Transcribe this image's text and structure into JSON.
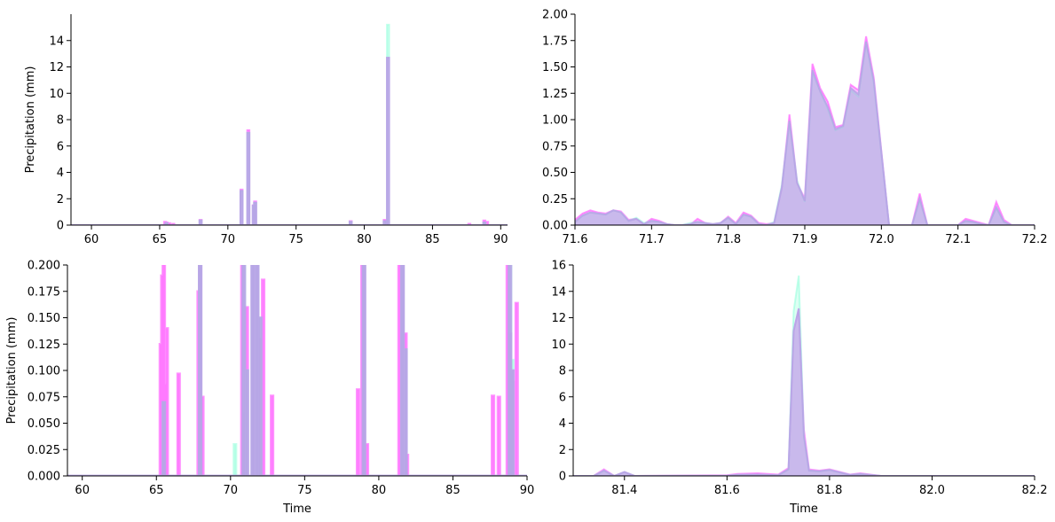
{
  "chart_data": [
    {
      "type": "area",
      "xlabel": "",
      "ylabel": "Precipitation (mm)",
      "xlim": [
        58.5,
        90.5
      ],
      "ylim": [
        0,
        16
      ],
      "xticks": [
        60,
        65,
        70,
        75,
        80,
        85,
        90
      ],
      "xtick_labels": [
        "60",
        "65",
        "70",
        "75",
        "80",
        "85",
        "90"
      ],
      "yticks": [
        0,
        2,
        4,
        6,
        8,
        10,
        12,
        14
      ],
      "ytick_labels": [
        "0",
        "2",
        "4",
        "6",
        "8",
        "10",
        "12",
        "14"
      ],
      "grid": false,
      "series": [
        {
          "color": "#ff40ff",
          "x": [
            59,
            65.4,
            65.5,
            65.7,
            66.0,
            68.0,
            71.0,
            71.5,
            71.9,
            72.0,
            79.0,
            81.5,
            81.74,
            87.7,
            88.8,
            89.0,
            90
          ],
          "values": [
            0,
            0.25,
            0.2,
            0.15,
            0.1,
            0.4,
            2.7,
            7.2,
            1.5,
            1.8,
            0.3,
            0.4,
            12.7,
            0.1,
            0.35,
            0.25,
            0
          ]
        },
        {
          "color": "#7fffd4",
          "x": [
            59,
            65.5,
            68.0,
            71.0,
            71.5,
            71.9,
            72.0,
            79.0,
            81.5,
            81.74,
            88.8,
            90
          ],
          "values": [
            0,
            0.15,
            0.35,
            2.6,
            7.0,
            1.4,
            1.7,
            0.25,
            0.3,
            15.2,
            0.2,
            0
          ]
        },
        {
          "color": "#b7a3e6",
          "x": [
            59,
            65.5,
            68.0,
            71.0,
            71.5,
            71.9,
            72.0,
            79.0,
            81.5,
            81.74,
            88.8,
            90
          ],
          "values": [
            0,
            0.15,
            0.35,
            2.6,
            7.0,
            1.5,
            1.7,
            0.25,
            0.3,
            12.7,
            0.2,
            0
          ]
        }
      ]
    },
    {
      "type": "area",
      "xlabel": "",
      "ylabel": "",
      "xlim": [
        71.6,
        72.2
      ],
      "ylim": [
        0,
        2.0
      ],
      "xticks": [
        71.6,
        71.7,
        71.8,
        71.9,
        72.0,
        72.1,
        72.2
      ],
      "xtick_labels": [
        "71.6",
        "71.7",
        "71.8",
        "71.9",
        "72.0",
        "72.1",
        "72.2"
      ],
      "yticks": [
        0,
        0.25,
        0.5,
        0.75,
        1.0,
        1.25,
        1.5,
        1.75,
        2.0
      ],
      "ytick_labels": [
        "0.00",
        "0.25",
        "0.50",
        "0.75",
        "1.00",
        "1.25",
        "1.50",
        "1.75",
        "2.00"
      ],
      "grid": false,
      "series": [
        {
          "color": "#ff40ff",
          "x": [
            71.6,
            71.61,
            71.62,
            71.63,
            71.64,
            71.65,
            71.66,
            71.67,
            71.68,
            71.69,
            71.7,
            71.71,
            71.72,
            71.73,
            71.74,
            71.75,
            71.76,
            71.77,
            71.78,
            71.79,
            71.8,
            71.81,
            71.82,
            71.83,
            71.84,
            71.85,
            71.86,
            71.87,
            71.88,
            71.89,
            71.9,
            71.91,
            71.92,
            71.93,
            71.94,
            71.95,
            71.96,
            71.97,
            71.98,
            71.99,
            72.0,
            72.01,
            72.02,
            72.03,
            72.04,
            72.05,
            72.06,
            72.07,
            72.08,
            72.09,
            72.1,
            72.11,
            72.12,
            72.13,
            72.14,
            72.15,
            72.16,
            72.17,
            72.18,
            72.19,
            72.2
          ],
          "values": [
            0.05,
            0.11,
            0.14,
            0.12,
            0.11,
            0.14,
            0.13,
            0.05,
            0.06,
            0.01,
            0.06,
            0.04,
            0.01,
            0.0,
            0.0,
            0.0,
            0.06,
            0.02,
            0.01,
            0.02,
            0.08,
            0.02,
            0.12,
            0.09,
            0.02,
            0.01,
            0.02,
            0.35,
            1.05,
            0.4,
            0.25,
            1.53,
            1.3,
            1.17,
            0.93,
            0.95,
            1.33,
            1.28,
            1.79,
            1.4,
            0.7,
            0.0,
            0.0,
            0.0,
            0.0,
            0.3,
            0.0,
            0.0,
            0.0,
            0.0,
            0.0,
            0.06,
            0.04,
            0.02,
            0.0,
            0.22,
            0.05,
            0.0,
            0.0,
            0.0,
            0.0
          ]
        },
        {
          "color": "#7fffd4",
          "x": [
            71.6,
            71.61,
            71.62,
            71.63,
            71.64,
            71.65,
            71.66,
            71.67,
            71.68,
            71.69,
            71.7,
            71.71,
            71.72,
            71.73,
            71.74,
            71.75,
            71.76,
            71.77,
            71.78,
            71.79,
            71.8,
            71.81,
            71.82,
            71.83,
            71.84,
            71.85,
            71.86,
            71.87,
            71.88,
            71.89,
            71.9,
            71.91,
            71.92,
            71.93,
            71.94,
            71.95,
            71.96,
            71.97,
            71.98,
            71.99,
            72.0,
            72.01,
            72.02,
            72.03,
            72.04,
            72.05,
            72.06,
            72.07,
            72.08,
            72.09,
            72.1,
            72.11,
            72.12,
            72.13,
            72.14,
            72.15,
            72.16,
            72.17,
            72.18,
            72.19,
            72.2
          ],
          "values": [
            0.03,
            0.09,
            0.12,
            0.11,
            0.1,
            0.14,
            0.12,
            0.04,
            0.07,
            0.02,
            0.04,
            0.03,
            0.01,
            0.0,
            0.0,
            0.02,
            0.03,
            0.02,
            0.01,
            0.02,
            0.07,
            0.01,
            0.1,
            0.08,
            0.01,
            0.0,
            0.03,
            0.38,
            0.98,
            0.42,
            0.22,
            1.45,
            1.27,
            1.1,
            0.9,
            0.93,
            1.28,
            1.22,
            1.73,
            1.35,
            0.68,
            0.0,
            0.0,
            0.0,
            0.0,
            0.24,
            0.0,
            0.0,
            0.0,
            0.0,
            0.0,
            0.04,
            0.03,
            0.01,
            0.0,
            0.16,
            0.03,
            0.0,
            0.0,
            0.0,
            0.0
          ]
        },
        {
          "color": "#b7a3e6",
          "x": [
            71.6,
            71.61,
            71.62,
            71.63,
            71.64,
            71.65,
            71.66,
            71.67,
            71.68,
            71.69,
            71.7,
            71.71,
            71.72,
            71.73,
            71.74,
            71.75,
            71.76,
            71.77,
            71.78,
            71.79,
            71.8,
            71.81,
            71.82,
            71.83,
            71.84,
            71.85,
            71.86,
            71.87,
            71.88,
            71.89,
            71.9,
            71.91,
            71.92,
            71.93,
            71.94,
            71.95,
            71.96,
            71.97,
            71.98,
            71.99,
            72.0,
            72.01,
            72.02,
            72.03,
            72.04,
            72.05,
            72.06,
            72.07,
            72.08,
            72.09,
            72.1,
            72.11,
            72.12,
            72.13,
            72.14,
            72.15,
            72.16,
            72.17,
            72.18,
            72.19,
            72.2
          ],
          "values": [
            0.03,
            0.09,
            0.12,
            0.11,
            0.1,
            0.14,
            0.12,
            0.04,
            0.06,
            0.01,
            0.04,
            0.03,
            0.01,
            0.0,
            0.0,
            0.01,
            0.03,
            0.02,
            0.01,
            0.02,
            0.07,
            0.01,
            0.1,
            0.08,
            0.01,
            0.0,
            0.02,
            0.36,
            0.99,
            0.4,
            0.23,
            1.47,
            1.27,
            1.12,
            0.91,
            0.94,
            1.3,
            1.24,
            1.74,
            1.37,
            0.69,
            0.0,
            0.0,
            0.0,
            0.0,
            0.25,
            0.0,
            0.0,
            0.0,
            0.0,
            0.0,
            0.04,
            0.03,
            0.01,
            0.0,
            0.17,
            0.03,
            0.0,
            0.0,
            0.0,
            0.0
          ]
        }
      ]
    },
    {
      "type": "area",
      "xlabel": "Time",
      "ylabel": "Precipitation (mm)",
      "xlim": [
        59,
        90
      ],
      "ylim": [
        0,
        0.2
      ],
      "xticks": [
        60,
        65,
        70,
        75,
        80,
        85,
        90
      ],
      "xtick_labels": [
        "60",
        "65",
        "70",
        "75",
        "80",
        "85",
        "90"
      ],
      "yticks": [
        0,
        0.025,
        0.05,
        0.075,
        0.1,
        0.125,
        0.15,
        0.175,
        0.2
      ],
      "ytick_labels": [
        "0.000",
        "0.025",
        "0.050",
        "0.075",
        "0.100",
        "0.125",
        "0.150",
        "0.175",
        "0.200"
      ],
      "grid": false,
      "series": [
        {
          "color": "#ff40ff",
          "x": [
            65.3,
            65.4,
            65.5,
            65.65,
            65.7,
            66.5,
            67.85,
            67.95,
            68.1,
            70.8,
            70.9,
            71.1,
            71.5,
            71.8,
            72.0,
            72.2,
            72.8,
            78.6,
            78.9,
            79.0,
            79.2,
            81.4,
            81.6,
            81.8,
            81.9,
            87.7,
            88.1,
            88.7,
            88.85,
            89.0,
            89.1,
            89.3
          ],
          "values": [
            0.125,
            0.19,
            0.2,
            0.087,
            0.14,
            0.097,
            0.175,
            0.2,
            0.075,
            0.2,
            0.06,
            0.16,
            0.2,
            0.2,
            0.13,
            0.186,
            0.076,
            0.082,
            0.2,
            0.2,
            0.03,
            0.2,
            0.2,
            0.135,
            0.02,
            0.076,
            0.075,
            0.2,
            0.135,
            0.1,
            0.09,
            0.164
          ]
        },
        {
          "color": "#7fffd4",
          "x": [
            65.5,
            67.95,
            70.3,
            70.9,
            71.1,
            71.5,
            71.8,
            72.0,
            79.0,
            81.6,
            81.8,
            88.85,
            89.0
          ],
          "values": [
            0.07,
            0.2,
            0.03,
            0.2,
            0.1,
            0.2,
            0.2,
            0.15,
            0.2,
            0.2,
            0.12,
            0.2,
            0.11
          ]
        },
        {
          "color": "#b7a3e6",
          "x": [
            65.5,
            67.95,
            70.9,
            71.1,
            71.5,
            71.8,
            72.0,
            79.0,
            81.6,
            81.8,
            88.85,
            89.0
          ],
          "values": [
            0.07,
            0.2,
            0.2,
            0.1,
            0.2,
            0.2,
            0.15,
            0.2,
            0.2,
            0.12,
            0.2,
            0.1
          ]
        }
      ]
    },
    {
      "type": "area",
      "xlabel": "Time",
      "ylabel": "",
      "xlim": [
        81.3,
        82.2
      ],
      "ylim": [
        0,
        16
      ],
      "xticks": [
        81.4,
        81.6,
        81.8,
        82.0,
        82.2
      ],
      "xtick_labels": [
        "81.4",
        "81.6",
        "81.8",
        "82.0",
        "82.2"
      ],
      "yticks": [
        0,
        2,
        4,
        6,
        8,
        10,
        12,
        14,
        16
      ],
      "ytick_labels": [
        "0",
        "2",
        "4",
        "6",
        "8",
        "10",
        "12",
        "14",
        "16"
      ],
      "grid": false,
      "series": [
        {
          "color": "#ff40ff",
          "x": [
            81.3,
            81.34,
            81.36,
            81.38,
            81.4,
            81.42,
            81.6,
            81.62,
            81.66,
            81.7,
            81.72,
            81.73,
            81.74,
            81.75,
            81.76,
            81.78,
            81.8,
            81.84,
            81.86,
            81.9,
            82.2
          ],
          "values": [
            0,
            0,
            0.5,
            0,
            0.3,
            0,
            0.05,
            0.15,
            0.2,
            0.1,
            0.6,
            11.0,
            12.7,
            3.5,
            0.5,
            0.4,
            0.5,
            0.1,
            0.2,
            0,
            0
          ]
        },
        {
          "color": "#7fffd4",
          "x": [
            81.3,
            81.34,
            81.36,
            81.38,
            81.4,
            81.42,
            81.6,
            81.62,
            81.66,
            81.7,
            81.72,
            81.73,
            81.74,
            81.75,
            81.76,
            81.78,
            81.8,
            81.84,
            81.86,
            81.9,
            82.2
          ],
          "values": [
            0,
            0,
            0.4,
            0,
            0.3,
            0,
            0.02,
            0.08,
            0.1,
            0.05,
            0.5,
            12.5,
            15.2,
            3.0,
            0.4,
            0.35,
            0.45,
            0.08,
            0.15,
            0,
            0
          ]
        },
        {
          "color": "#b7a3e6",
          "x": [
            81.3,
            81.34,
            81.36,
            81.38,
            81.4,
            81.42,
            81.6,
            81.62,
            81.66,
            81.7,
            81.72,
            81.73,
            81.74,
            81.75,
            81.76,
            81.78,
            81.8,
            81.84,
            81.86,
            81.9,
            82.2
          ],
          "values": [
            0,
            0,
            0.4,
            0,
            0.3,
            0,
            0.02,
            0.08,
            0.1,
            0.05,
            0.5,
            11.0,
            12.7,
            3.0,
            0.4,
            0.35,
            0.45,
            0.08,
            0.15,
            0,
            0
          ]
        }
      ]
    }
  ]
}
